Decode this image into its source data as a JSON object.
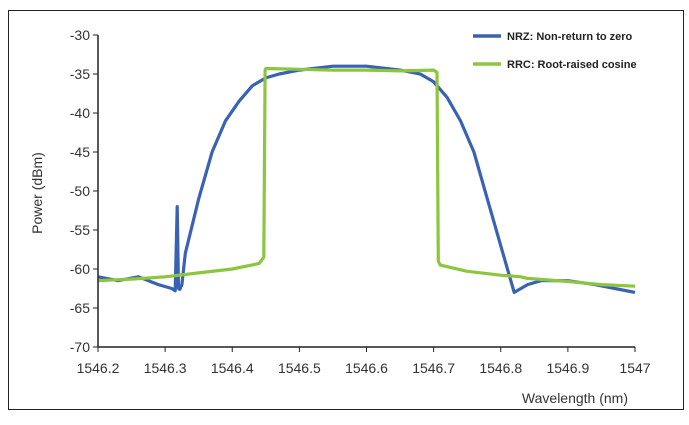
{
  "chart_data": {
    "type": "line",
    "title": "",
    "xlabel": "Wavelength (nm)",
    "ylabel": "Power (dBm)",
    "xlim": [
      1546.2,
      1547
    ],
    "ylim": [
      -70,
      -30
    ],
    "x_ticks": [
      "1546.2",
      "1546.3",
      "1546.4",
      "1546.5",
      "1546.6",
      "1546.7",
      "1546.8",
      "1546.9",
      "1547"
    ],
    "y_ticks": [
      "-30",
      "-35",
      "-40",
      "-45",
      "-50",
      "-55",
      "-60",
      "-65",
      "-70"
    ],
    "grid": false,
    "legend_position": "top-right",
    "series": [
      {
        "name": "NRZ: Non-return to zero",
        "color": "#3a62b4",
        "x": [
          1546.2,
          1546.23,
          1546.26,
          1546.29,
          1546.31,
          1546.315,
          1546.318,
          1546.32,
          1546.322,
          1546.325,
          1546.33,
          1546.35,
          1546.37,
          1546.39,
          1546.41,
          1546.43,
          1546.45,
          1546.47,
          1546.5,
          1546.55,
          1546.6,
          1546.65,
          1546.68,
          1546.7,
          1546.72,
          1546.74,
          1546.76,
          1546.78,
          1546.8,
          1546.82,
          1546.83,
          1546.84,
          1546.86,
          1546.9,
          1546.94,
          1546.97,
          1547
        ],
        "y": [
          -61,
          -61.5,
          -61,
          -62,
          -62.5,
          -62.8,
          -52,
          -62.5,
          -62.6,
          -62,
          -58,
          -51,
          -45,
          -41,
          -38.5,
          -36.5,
          -35.5,
          -35,
          -34.5,
          -34,
          -34,
          -34.5,
          -35,
          -36,
          -38,
          -41,
          -45,
          -51,
          -57,
          -63,
          -62.5,
          -62,
          -61.5,
          -61.5,
          -62,
          -62.5,
          -63
        ]
      },
      {
        "name": "RRC: Root-raised cosine",
        "color": "#8cc63f",
        "x": [
          1546.2,
          1546.25,
          1546.3,
          1546.35,
          1546.4,
          1546.44,
          1546.447,
          1546.449,
          1546.45,
          1546.5,
          1546.55,
          1546.6,
          1546.65,
          1546.7,
          1546.705,
          1546.707,
          1546.71,
          1546.75,
          1546.8,
          1546.83,
          1546.84,
          1546.9,
          1546.95,
          1547
        ],
        "y": [
          -61.5,
          -61.3,
          -61,
          -60.5,
          -60,
          -59.3,
          -58.5,
          -34.5,
          -34.3,
          -34.4,
          -34.5,
          -34.5,
          -34.6,
          -34.5,
          -34.8,
          -59,
          -59.5,
          -60.3,
          -60.8,
          -61,
          -61.2,
          -61.6,
          -62,
          -62.2
        ]
      }
    ]
  }
}
